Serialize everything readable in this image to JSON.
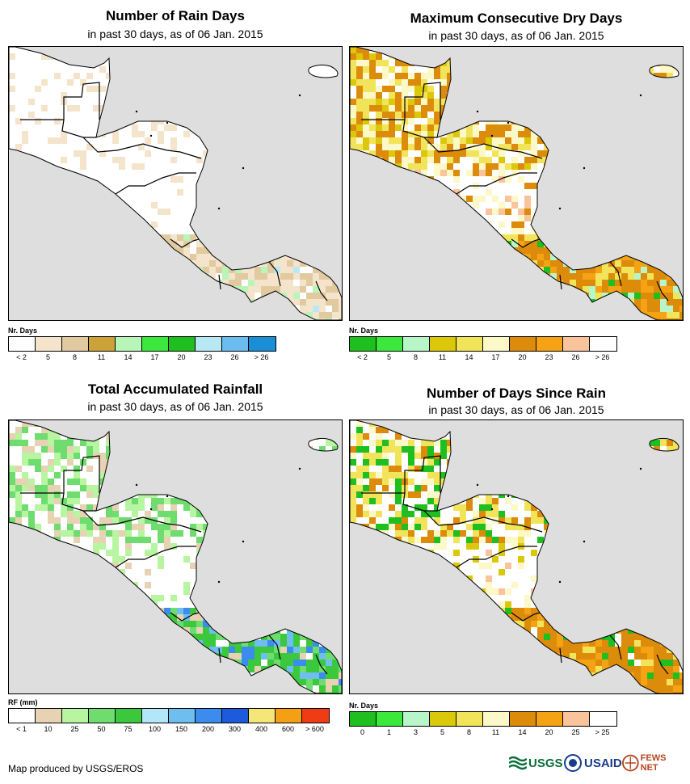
{
  "panels": [
    {
      "title": "Number of Rain Days",
      "subtitle": "in past 30 days, as of 06 Jan. 2015",
      "legend_title": "Nr. Days",
      "legend_colors": [
        "#ffffff",
        "#f5e4cc",
        "#e1c9a0",
        "#cca23a",
        "#b8f5b8",
        "#3ce83c",
        "#1fbf1f",
        "#b9e8f5",
        "#6cbcf0",
        "#1a8fd6"
      ],
      "legend_labels": [
        "< 2",
        "5",
        "8",
        "11",
        "14",
        "17",
        "20",
        "23",
        "26",
        "> 26"
      ],
      "map_style": "raindays"
    },
    {
      "title": "Maximum Consecutive Dry Days",
      "subtitle": "in past 30 days, as of 06 Jan. 2015",
      "legend_title": "Nr. Days",
      "legend_colors": [
        "#1fbf1f",
        "#3ce83c",
        "#b8f5c8",
        "#dcc80a",
        "#f2e45a",
        "#fcf8c8",
        "#dc8c0a",
        "#f5a314",
        "#f9c39b",
        "#ffffff"
      ],
      "legend_labels": [
        "< 2",
        "5",
        "8",
        "11",
        "14",
        "17",
        "20",
        "23",
        "26",
        "> 26"
      ],
      "map_style": "drydays"
    },
    {
      "title": "Total Accumulated Rainfall",
      "subtitle": "in past 30 days, as of 06 Jan. 2015",
      "legend_title": "RF (mm)",
      "legend_colors": [
        "#ffffff",
        "#e8d2b4",
        "#b8f5a0",
        "#6fdc6f",
        "#3cc83c",
        "#b4e6fa",
        "#6ebef0",
        "#3c8cf0",
        "#1e5adc",
        "#f5e678",
        "#f5a014",
        "#f03c14"
      ],
      "legend_labels": [
        "< 1",
        "10",
        "25",
        "50",
        "75",
        "100",
        "150",
        "200",
        "300",
        "400",
        "600",
        "> 600"
      ],
      "map_style": "rainfall"
    },
    {
      "title": "Number of Days Since Rain",
      "subtitle": "in past 30 days, as of 06 Jan. 2015",
      "legend_title": "Nr. Days",
      "legend_colors": [
        "#1fbf1f",
        "#3ce83c",
        "#b8f5c8",
        "#dcc80a",
        "#f2e45a",
        "#fcf8c8",
        "#dc8c0a",
        "#f5a314",
        "#f9c39b",
        "#ffffff"
      ],
      "legend_labels": [
        "0",
        "1",
        "3",
        "5",
        "8",
        "11",
        "14",
        "20",
        "25",
        "> 25"
      ],
      "map_style": "sincerain"
    }
  ],
  "credit": "Map produced by USGS/EROS",
  "logos": {
    "usgs": "USGS",
    "usaid": "USAID",
    "fewsnet": "FEWS NET"
  }
}
